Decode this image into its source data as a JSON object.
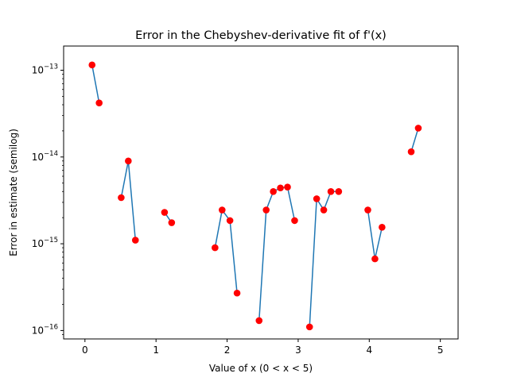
{
  "chart_data": {
    "type": "line",
    "title": "Error in the Chebyshev-derivative fit of f'(x)",
    "xlabel": "Value of x (0 < x < 5)",
    "ylabel": "Error in estimate (semilog)",
    "xscale": "linear",
    "yscale": "log",
    "xlim": [
      -0.3,
      5.25
    ],
    "ylim": [
      8e-17,
      1.9e-13
    ],
    "xticks": [
      0,
      1,
      2,
      3,
      4,
      5
    ],
    "xtick_labels": [
      "0",
      "1",
      "2",
      "3",
      "4",
      "5"
    ],
    "yticks": [
      1e-16,
      1e-15,
      1e-14,
      1e-13
    ],
    "ytick_labels": [
      {
        "base": "10",
        "exp": "−16"
      },
      {
        "base": "10",
        "exp": "−15"
      },
      {
        "base": "10",
        "exp": "−14"
      },
      {
        "base": "10",
        "exp": "−13"
      }
    ],
    "grid": false,
    "legend": false,
    "colors": {
      "line": "#1f77b4",
      "marker": "#ff0000"
    },
    "segments": [
      {
        "x": [
          0.1,
          0.2
        ],
        "y": [
          1.15e-13,
          4.2e-14
        ]
      },
      {
        "x": [
          0.51,
          0.61,
          0.71
        ],
        "y": [
          3.4e-15,
          9e-15,
          1.1e-15
        ]
      },
      {
        "x": [
          1.12,
          1.22
        ],
        "y": [
          2.3e-15,
          1.75e-15
        ]
      },
      {
        "x": [
          1.83,
          1.93,
          2.04,
          2.14
        ],
        "y": [
          9e-16,
          2.45e-15,
          1.85e-15,
          2.7e-16
        ]
      },
      {
        "x": [
          2.45,
          2.55,
          2.65,
          2.75,
          2.85,
          2.95
        ],
        "y": [
          1.3e-16,
          2.45e-15,
          4e-15,
          4.4e-15,
          4.5e-15,
          1.85e-15
        ]
      },
      {
        "x": [
          3.16,
          3.26,
          3.36,
          3.46,
          3.57
        ],
        "y": [
          1.1e-16,
          3.3e-15,
          2.45e-15,
          4e-15,
          4e-15
        ]
      },
      {
        "x": [
          3.98,
          4.08,
          4.18
        ],
        "y": [
          2.45e-15,
          6.7e-16,
          1.55e-15
        ]
      },
      {
        "x": [
          4.59,
          4.69
        ],
        "y": [
          1.15e-14,
          2.15e-14
        ]
      }
    ]
  }
}
